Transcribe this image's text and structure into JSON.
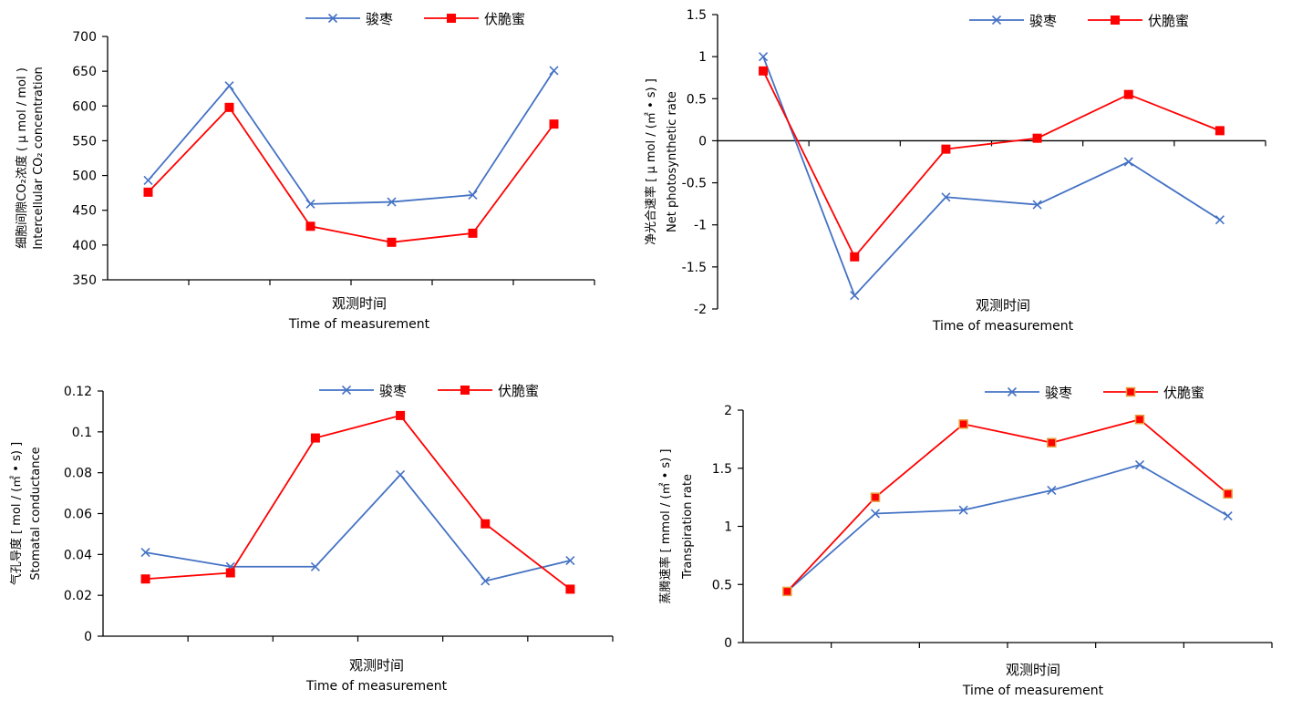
{
  "colors": {
    "series1": "#4472C4",
    "series2": "#FF0000",
    "series2_stroke_alt": "#E8A040",
    "axis": "#000000"
  },
  "chart_data": [
    {
      "type": "line",
      "ylabel_lines": [
        "细胞间隙CO₂浓度 ( μ mol / mol )",
        "Intercellular CO₂ concentration"
      ],
      "xlabel_lines": [
        "观测时间",
        "Time of measurement"
      ],
      "ylim": [
        350,
        700
      ],
      "yticks": [
        350,
        400,
        450,
        500,
        550,
        600,
        650,
        700
      ],
      "n_points": 6,
      "series": [
        {
          "name": "骏枣",
          "marker": "x",
          "values": [
            493,
            629,
            459,
            462,
            472,
            651
          ]
        },
        {
          "name": "伏脆蜜",
          "marker": "square",
          "values": [
            476,
            598,
            427,
            404,
            417,
            574
          ]
        }
      ]
    },
    {
      "type": "line",
      "ylabel_lines": [
        "净光合速率 [ μ mol / (㎡ • s) ]",
        "Net photosynthetic rate"
      ],
      "xlabel_lines": [
        "观测时间",
        "Time of measurement"
      ],
      "ylim": [
        -2,
        1.5
      ],
      "yticks": [
        -2,
        -1.5,
        -1,
        -0.5,
        0,
        0.5,
        1,
        1.5
      ],
      "ytick_labels": [
        "-2",
        "-1.5",
        "-1",
        "-0.5",
        "0",
        "0.5",
        "1",
        "1.5"
      ],
      "n_points": 6,
      "series": [
        {
          "name": "骏枣",
          "marker": "x",
          "values": [
            1.0,
            -1.84,
            -0.67,
            -0.76,
            -0.25,
            -0.94
          ]
        },
        {
          "name": "伏脆蜜",
          "marker": "square",
          "values": [
            0.83,
            -1.38,
            -0.1,
            0.03,
            0.55,
            0.12
          ]
        }
      ]
    },
    {
      "type": "line",
      "ylabel_lines": [
        "气孔导度 [ mol / (㎡ • s) ]",
        "Stomatal conductance"
      ],
      "xlabel_lines": [
        "观测时间",
        "Time of measurement"
      ],
      "ylim": [
        0,
        0.12
      ],
      "yticks": [
        0,
        0.02,
        0.04,
        0.06,
        0.08,
        0.1,
        0.12
      ],
      "ytick_labels": [
        "0",
        "0.02",
        "0.04",
        "0.06",
        "0.08",
        "0.1",
        "0.12"
      ],
      "n_points": 6,
      "series": [
        {
          "name": "骏枣",
          "marker": "x",
          "values": [
            0.041,
            0.034,
            0.034,
            0.079,
            0.027,
            0.037
          ]
        },
        {
          "name": "伏脆蜜",
          "marker": "square",
          "values": [
            0.028,
            0.031,
            0.097,
            0.108,
            0.055,
            0.023
          ]
        }
      ]
    },
    {
      "type": "line",
      "ylabel_lines": [
        "蒸腾速率 [ mmol / (㎡ • s) ]",
        "Transpiration rate"
      ],
      "xlabel_lines": [
        "观测时间",
        "Time of measurement"
      ],
      "ylim": [
        0,
        2
      ],
      "yticks": [
        0,
        0.5,
        1,
        1.5,
        2
      ],
      "ytick_labels": [
        "0",
        "0.5",
        "1",
        "1.5",
        "2"
      ],
      "n_points": 6,
      "series": [
        {
          "name": "骏枣",
          "marker": "x",
          "values": [
            0.44,
            1.11,
            1.14,
            1.31,
            1.53,
            1.09
          ]
        },
        {
          "name": "伏脆蜜",
          "marker": "square-orange",
          "values": [
            0.44,
            1.25,
            1.88,
            1.72,
            1.92,
            1.28
          ]
        }
      ]
    }
  ]
}
